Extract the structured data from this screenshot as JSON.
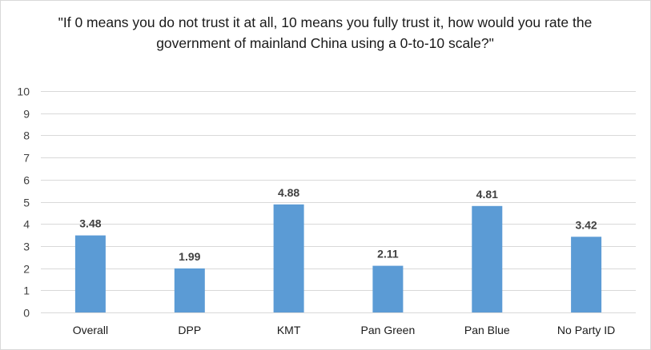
{
  "chart_data": {
    "type": "bar",
    "title": "\"If 0 means you do not trust it at all, 10 means you fully trust it, how would you rate the government of mainland China using a 0-to-10 scale?\"",
    "categories": [
      "Overall",
      "DPP",
      "KMT",
      "Pan Green",
      "Pan Blue",
      "No Party ID"
    ],
    "values": [
      3.48,
      1.99,
      4.88,
      2.11,
      4.81,
      3.42
    ],
    "data_labels": [
      "3.48",
      "1.99",
      "4.88",
      "2.11",
      "4.81",
      "3.42"
    ],
    "ylim": [
      0,
      10
    ],
    "yticks": [
      0,
      1,
      2,
      3,
      4,
      5,
      6,
      7,
      8,
      9,
      10
    ],
    "xlabel": "",
    "ylabel": "",
    "grid": true,
    "legend": "none",
    "bar_color": "#5b9bd5",
    "grid_color": "#d9d9d9"
  }
}
